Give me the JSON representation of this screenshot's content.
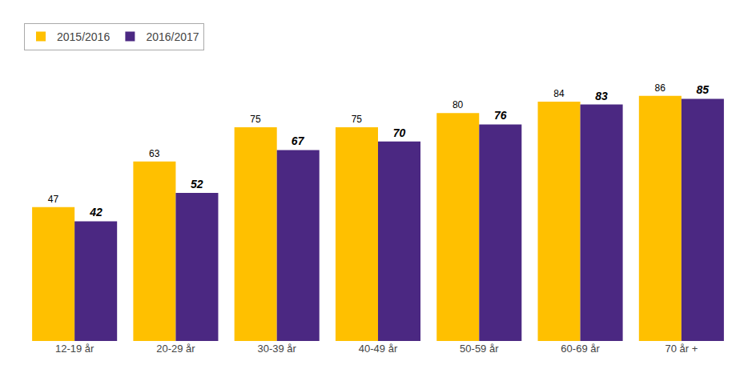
{
  "chart_data": {
    "type": "bar",
    "categories": [
      "12-19 år",
      "20-29 år",
      "30-39 år",
      "40-49 år",
      "50-59 år",
      "60-69 år",
      "70 år +"
    ],
    "series": [
      {
        "name": "2015/2016",
        "color": "#FFC000",
        "values": [
          47,
          63,
          75,
          75,
          80,
          84,
          86
        ]
      },
      {
        "name": "2016/2017",
        "color": "#4B2882",
        "values": [
          42,
          52,
          67,
          70,
          76,
          83,
          85
        ]
      }
    ],
    "ylim": [
      0,
      100
    ],
    "data_labels": true,
    "tick_labels": "x",
    "legend": "upper left",
    "grid": false
  }
}
